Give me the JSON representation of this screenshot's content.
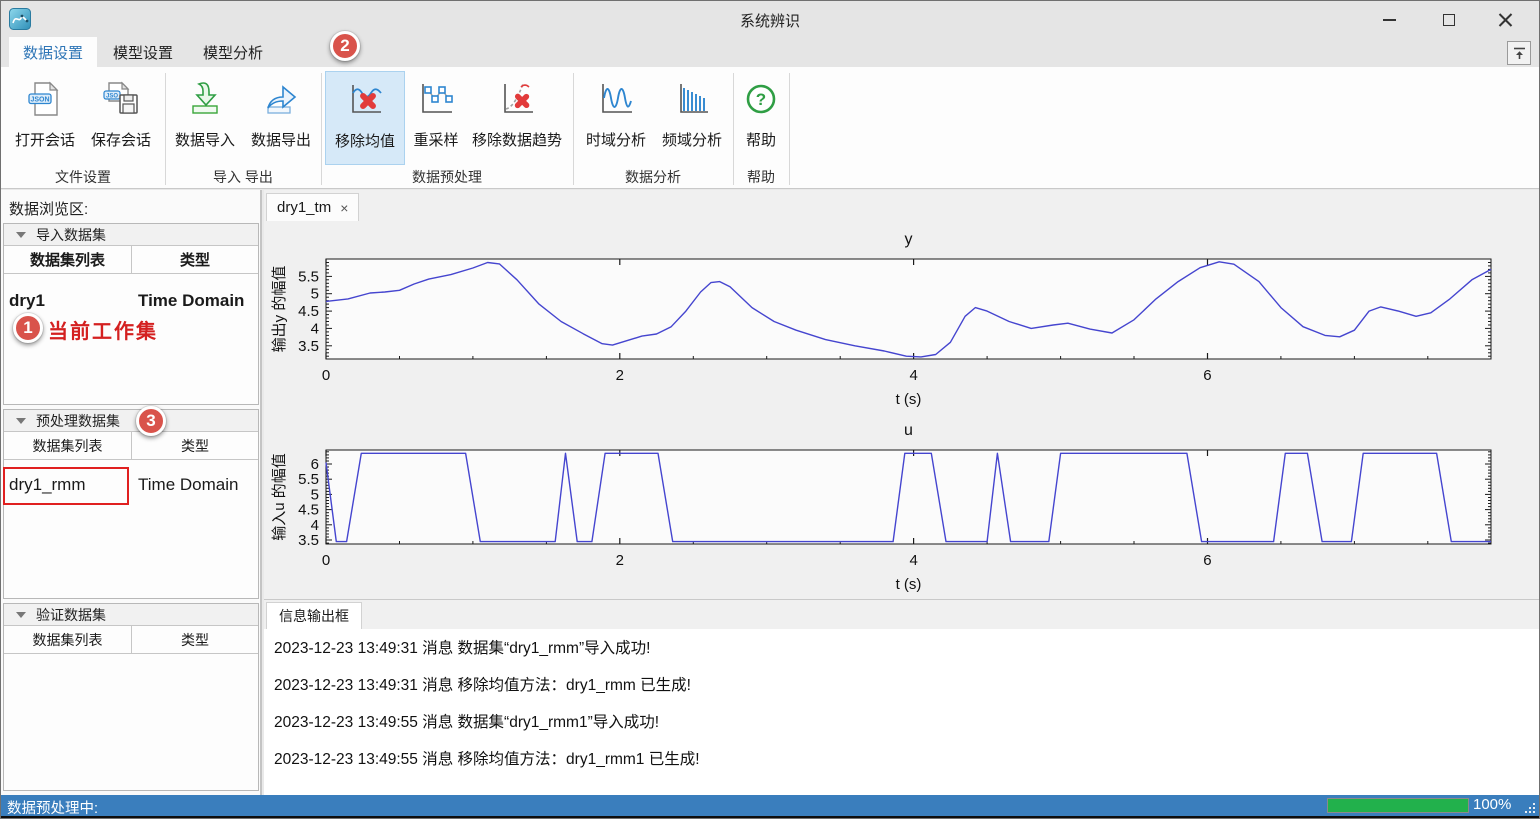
{
  "titlebar": {
    "title": "系统辨识"
  },
  "nav_tabs": {
    "data": "数据设置",
    "model": "模型设置",
    "analysis": "模型分析",
    "active_color": "#2e75b6"
  },
  "ribbon": {
    "buttons": {
      "open_session": "打开会话",
      "save_session": "保存会话",
      "data_import": "数据导入",
      "data_export": "数据导出",
      "remove_mean": "移除均值",
      "resample": "重采样",
      "detrend": "移除数据趋势",
      "time_analysis": "时域分析",
      "freq_analysis": "频域分析",
      "help": "帮助"
    },
    "icons": [
      "json-file-icon",
      "save-session-floppy-icon",
      "import-arrow-icon",
      "export-arrow-icon",
      "remove-mean-chart-x-icon",
      "resample-chart-icon",
      "detrend-chart-x-icon",
      "sine-wave-icon",
      "spectrum-bars-icon",
      "question-mark-icon"
    ],
    "groups": {
      "file": "文件设置",
      "import_export": "导入 导出",
      "preprocess": "数据预处理",
      "analysis": "数据分析",
      "help": "帮助"
    },
    "highlighted_button": "remove_mean",
    "highlight_color": "#d6e9f8"
  },
  "sidebar": {
    "title": "数据浏览区:",
    "sections": [
      {
        "header": "导入数据集",
        "col1": "数据集列表",
        "col2": "类型",
        "rows": [
          {
            "name": "dry1",
            "type": "Time Domain"
          }
        ]
      },
      {
        "header": "预处理数据集",
        "col1": "数据集列表",
        "col2": "类型",
        "rows": [
          {
            "name": "dry1_rmm",
            "type": "Time Domain"
          }
        ]
      },
      {
        "header": "验证数据集",
        "col1": "数据集列表",
        "col2": "类型",
        "rows": []
      }
    ]
  },
  "workspace": {
    "chart_tab": "dry1_tm",
    "chart_tab_close": "×"
  },
  "chart_data": [
    {
      "type": "line",
      "title": "y",
      "xlabel": "t (s)",
      "ylabel": "输出y 的幅值",
      "xlim": [
        0,
        7.93
      ],
      "ylim": [
        3.12,
        6.0
      ],
      "xticks": [
        0,
        2,
        4,
        6
      ],
      "yticks": [
        3.5,
        4,
        4.5,
        5,
        5.5
      ],
      "grid": false,
      "line_color": "#4545cf",
      "points": [
        [
          0,
          4.78
        ],
        [
          0.15,
          4.85
        ],
        [
          0.3,
          5.02
        ],
        [
          0.4,
          5.05
        ],
        [
          0.5,
          5.1
        ],
        [
          0.6,
          5.28
        ],
        [
          0.7,
          5.42
        ],
        [
          0.85,
          5.55
        ],
        [
          1.0,
          5.74
        ],
        [
          1.1,
          5.9
        ],
        [
          1.18,
          5.86
        ],
        [
          1.3,
          5.4
        ],
        [
          1.45,
          4.7
        ],
        [
          1.6,
          4.2
        ],
        [
          1.75,
          3.85
        ],
        [
          1.88,
          3.56
        ],
        [
          1.95,
          3.52
        ],
        [
          2.05,
          3.65
        ],
        [
          2.15,
          3.78
        ],
        [
          2.25,
          3.84
        ],
        [
          2.35,
          4.05
        ],
        [
          2.45,
          4.5
        ],
        [
          2.55,
          5.05
        ],
        [
          2.62,
          5.32
        ],
        [
          2.68,
          5.35
        ],
        [
          2.75,
          5.2
        ],
        [
          2.9,
          4.6
        ],
        [
          3.05,
          4.2
        ],
        [
          3.2,
          3.95
        ],
        [
          3.4,
          3.68
        ],
        [
          3.6,
          3.5
        ],
        [
          3.8,
          3.35
        ],
        [
          3.95,
          3.2
        ],
        [
          4.05,
          3.18
        ],
        [
          4.15,
          3.25
        ],
        [
          4.25,
          3.6
        ],
        [
          4.35,
          4.35
        ],
        [
          4.42,
          4.6
        ],
        [
          4.5,
          4.5
        ],
        [
          4.65,
          4.2
        ],
        [
          4.8,
          4.0
        ],
        [
          4.95,
          4.1
        ],
        [
          5.05,
          4.15
        ],
        [
          5.2,
          3.98
        ],
        [
          5.35,
          3.87
        ],
        [
          5.5,
          4.25
        ],
        [
          5.65,
          4.85
        ],
        [
          5.8,
          5.35
        ],
        [
          5.95,
          5.75
        ],
        [
          6.08,
          5.92
        ],
        [
          6.18,
          5.85
        ],
        [
          6.35,
          5.35
        ],
        [
          6.5,
          4.6
        ],
        [
          6.65,
          4.05
        ],
        [
          6.8,
          3.8
        ],
        [
          6.9,
          3.76
        ],
        [
          7.0,
          3.95
        ],
        [
          7.1,
          4.5
        ],
        [
          7.18,
          4.62
        ],
        [
          7.3,
          4.5
        ],
        [
          7.42,
          4.35
        ],
        [
          7.52,
          4.45
        ],
        [
          7.65,
          4.85
        ],
        [
          7.8,
          5.4
        ],
        [
          7.93,
          5.7
        ]
      ]
    },
    {
      "type": "line",
      "title": "u",
      "xlabel": "t (s)",
      "ylabel": "输入u 的幅值",
      "xlim": [
        0,
        7.93
      ],
      "ylim": [
        3.37,
        6.46
      ],
      "xticks": [
        0,
        2,
        4,
        6
      ],
      "yticks": [
        3.5,
        4,
        4.5,
        5,
        5.5,
        6
      ],
      "grid": false,
      "line_color": "#4545cf",
      "points": [
        [
          0,
          6.05
        ],
        [
          0.07,
          3.45
        ],
        [
          0.14,
          3.45
        ],
        [
          0.24,
          6.35
        ],
        [
          0.95,
          6.35
        ],
        [
          1.05,
          3.45
        ],
        [
          1.56,
          3.45
        ],
        [
          1.63,
          6.35
        ],
        [
          1.71,
          3.45
        ],
        [
          1.81,
          3.45
        ],
        [
          1.9,
          6.35
        ],
        [
          2.26,
          6.35
        ],
        [
          2.36,
          3.45
        ],
        [
          3.86,
          3.45
        ],
        [
          3.94,
          6.35
        ],
        [
          4.12,
          6.35
        ],
        [
          4.22,
          3.45
        ],
        [
          4.5,
          3.45
        ],
        [
          4.57,
          6.35
        ],
        [
          4.66,
          3.45
        ],
        [
          4.92,
          3.45
        ],
        [
          5.0,
          6.35
        ],
        [
          5.86,
          6.35
        ],
        [
          5.96,
          3.45
        ],
        [
          6.45,
          3.45
        ],
        [
          6.53,
          6.35
        ],
        [
          6.68,
          6.35
        ],
        [
          6.78,
          3.45
        ],
        [
          6.98,
          3.45
        ],
        [
          7.06,
          6.35
        ],
        [
          7.56,
          6.35
        ],
        [
          7.66,
          3.45
        ],
        [
          7.93,
          3.45
        ]
      ]
    }
  ],
  "info_panel": {
    "tab": "信息输出框",
    "messages": [
      "2023-12-23 13:49:31 消息 数据集“dry1_rmm”导入成功!",
      "2023-12-23 13:49:31 消息 移除均值方法：dry1_rmm 已生成!",
      "2023-12-23 13:49:55 消息 数据集“dry1_rmm1”导入成功!",
      "2023-12-23 13:49:55 消息 移除均值方法：dry1_rmm1 已生成!"
    ]
  },
  "status_bar": {
    "text": "数据预处理中:",
    "progress_label": "100%",
    "progress_value": 100,
    "progress_color": "#22b14c",
    "bar_color": "#3a7ebd"
  },
  "annotations": {
    "step1": "1",
    "step2": "2",
    "step3": "3",
    "current_workset": "当前工作集",
    "callout_color": "#d9534b",
    "highlight_rect_color": "#e02020"
  }
}
